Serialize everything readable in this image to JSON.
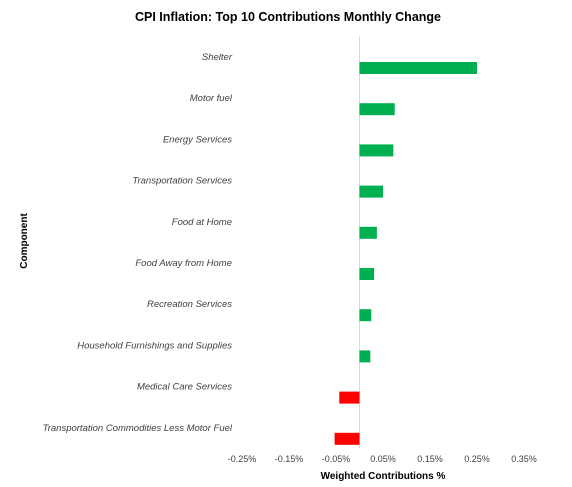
{
  "chart_data": {
    "type": "bar",
    "orientation": "horizontal",
    "title": "CPI Inflation: Top 10 Contributions Monthly Change",
    "xlabel": "Weighted Contributions %",
    "ylabel": "Component",
    "xlim": [
      -0.25,
      0.35
    ],
    "x_ticks": [
      "-0.25%",
      "-0.15%",
      "-0.05%",
      "0.05%",
      "0.15%",
      "0.25%",
      "0.35%"
    ],
    "x_tick_values": [
      -0.25,
      -0.15,
      -0.05,
      0.05,
      0.15,
      0.25,
      0.35
    ],
    "grid": false,
    "legend": "none",
    "categories": [
      "Shelter",
      "Motor fuel",
      "Energy Services",
      "Transportation Services",
      "Food at Home",
      "Food Away from Home",
      "Recreation Services",
      "Household Furnishings and Supplies",
      "Medical Care Services",
      "Transportation Commodities Less Motor Fuel"
    ],
    "values": [
      0.25,
      0.075,
      0.072,
      0.05,
      0.037,
      0.031,
      0.025,
      0.023,
      -0.043,
      -0.053
    ],
    "colors": {
      "positive": "#00b050",
      "negative": "#ff0000",
      "axis": "#d9d9d9",
      "text": "#404040"
    }
  }
}
